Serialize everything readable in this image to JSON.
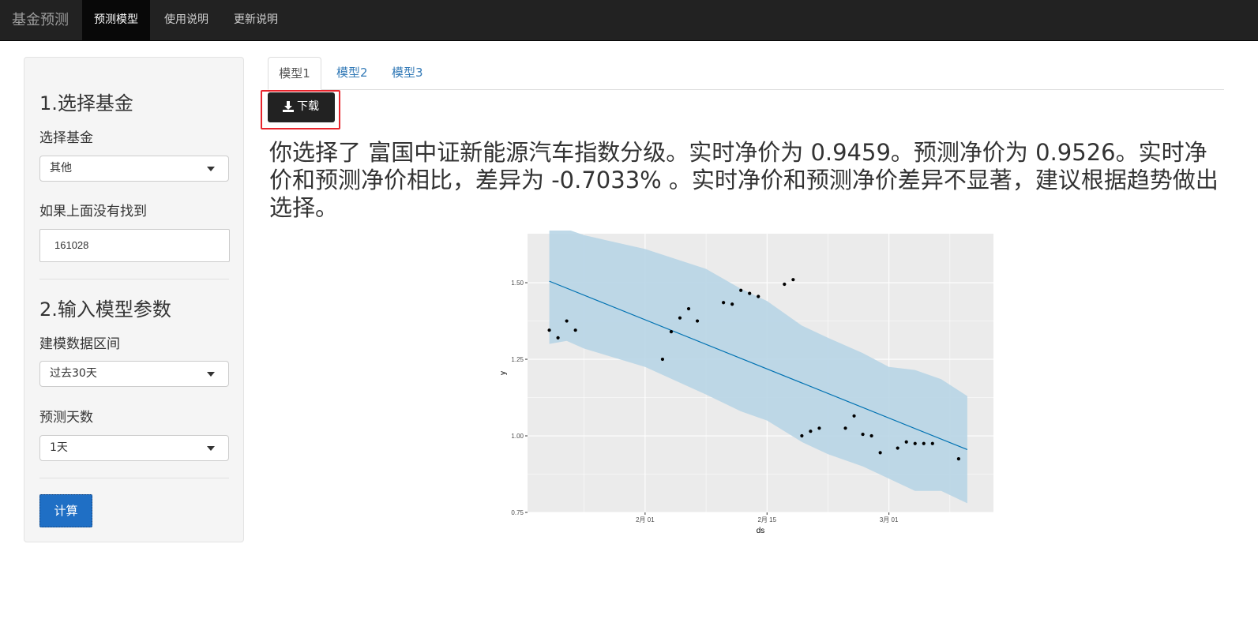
{
  "navbar": {
    "brand": "基金预测",
    "items": [
      {
        "label": "预测模型",
        "active": true
      },
      {
        "label": "使用说明",
        "active": false
      },
      {
        "label": "更新说明",
        "active": false
      }
    ]
  },
  "sidebar": {
    "section1_title": "1.选择基金",
    "fund_select_label": "选择基金",
    "fund_select_value": "其他",
    "fallback_label": "如果上面没有找到",
    "fallback_value": "161028",
    "section2_title": "2.输入模型参数",
    "range_label": "建模数据区间",
    "range_value": "过去30天",
    "days_label": "预测天数",
    "days_value": "1天",
    "calc_button": "计算"
  },
  "tabs": [
    {
      "label": "模型1",
      "active": true
    },
    {
      "label": "模型2",
      "active": false
    },
    {
      "label": "模型3",
      "active": false
    }
  ],
  "download_button": "下载",
  "result_text": "你选择了 富国中证新能源汽车指数分级。实时净价为 0.9459。预测净价为 0.9526。实时净价和预测净价相比，差异为 -0.7033% 。实时净价和预测净价差异不显著，建议根据趋势做出选择。",
  "chart_data": {
    "type": "scatter",
    "xlabel": "ds",
    "ylabel": "y",
    "x_tick_labels": [
      "2月 01",
      "2月 15",
      "3月 01"
    ],
    "y_tick_labels": [
      "0.75",
      "1.00",
      "1.25",
      "1.50"
    ],
    "ylim": [
      0.75,
      1.66
    ],
    "xlim_days_from_jan1": [
      18.5,
      72
    ],
    "grid": true,
    "colors": {
      "panel": "#ebebeb",
      "ribbon": "#b8d5e5",
      "line": "#0072B2",
      "points": "#000000"
    },
    "points": [
      {
        "x": "01-21",
        "y": 1.345
      },
      {
        "x": "01-22",
        "y": 1.32
      },
      {
        "x": "01-23",
        "y": 1.375
      },
      {
        "x": "01-24",
        "y": 1.345
      },
      {
        "x": "02-03",
        "y": 1.25
      },
      {
        "x": "02-04",
        "y": 1.34
      },
      {
        "x": "02-05",
        "y": 1.385
      },
      {
        "x": "02-06",
        "y": 1.415
      },
      {
        "x": "02-07",
        "y": 1.375
      },
      {
        "x": "02-10",
        "y": 1.435
      },
      {
        "x": "02-11",
        "y": 1.43
      },
      {
        "x": "02-12",
        "y": 1.475
      },
      {
        "x": "02-13",
        "y": 1.465
      },
      {
        "x": "02-14",
        "y": 1.455
      },
      {
        "x": "02-17",
        "y": 1.495
      },
      {
        "x": "02-18",
        "y": 1.51
      },
      {
        "x": "02-19",
        "y": 1.0
      },
      {
        "x": "02-20",
        "y": 1.015
      },
      {
        "x": "02-21",
        "y": 1.025
      },
      {
        "x": "02-24",
        "y": 1.025
      },
      {
        "x": "02-25",
        "y": 1.065
      },
      {
        "x": "02-26",
        "y": 1.005
      },
      {
        "x": "02-27",
        "y": 1.0
      },
      {
        "x": "02-28",
        "y": 0.945
      },
      {
        "x": "03-02",
        "y": 0.96
      },
      {
        "x": "03-03",
        "y": 0.98
      },
      {
        "x": "03-04",
        "y": 0.975
      },
      {
        "x": "03-05",
        "y": 0.975
      },
      {
        "x": "03-06",
        "y": 0.975
      },
      {
        "x": "03-09",
        "y": 0.925
      }
    ],
    "trend": [
      {
        "x": "01-21",
        "y": 1.505
      },
      {
        "x": "03-10",
        "y": 0.955
      }
    ],
    "interval": [
      {
        "x": "01-21",
        "lower": 1.3,
        "upper": 1.67
      },
      {
        "x": "01-23",
        "lower": 1.31,
        "upper": 1.675
      },
      {
        "x": "01-25",
        "lower": 1.285,
        "upper": 1.655
      },
      {
        "x": "02-01",
        "lower": 1.225,
        "upper": 1.61
      },
      {
        "x": "02-08",
        "lower": 1.135,
        "upper": 1.545
      },
      {
        "x": "02-12",
        "lower": 1.08,
        "upper": 1.48
      },
      {
        "x": "02-15",
        "lower": 1.05,
        "upper": 1.44
      },
      {
        "x": "02-19",
        "lower": 0.98,
        "upper": 1.36
      },
      {
        "x": "02-22",
        "lower": 0.94,
        "upper": 1.32
      },
      {
        "x": "02-26",
        "lower": 0.9,
        "upper": 1.27
      },
      {
        "x": "03-01",
        "lower": 0.86,
        "upper": 1.225
      },
      {
        "x": "03-04",
        "lower": 0.82,
        "upper": 1.215
      },
      {
        "x": "03-07",
        "lower": 0.82,
        "upper": 1.185
      },
      {
        "x": "03-10",
        "lower": 0.78,
        "upper": 1.13
      }
    ]
  }
}
